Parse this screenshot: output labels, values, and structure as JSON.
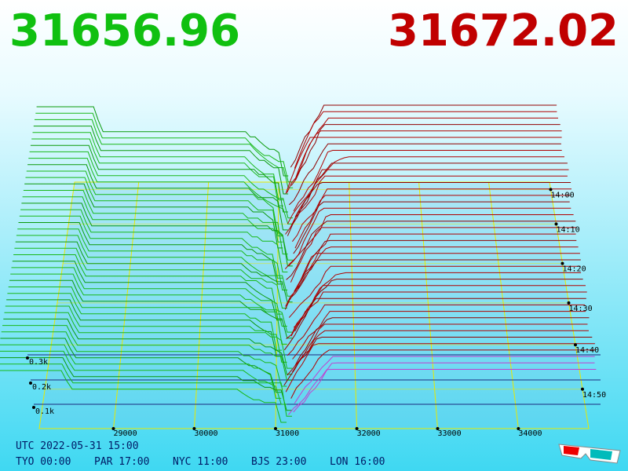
{
  "header": {
    "bid_price": "31656.96",
    "ask_price": "31672.02"
  },
  "axis": {
    "price_labels": [
      "29000",
      "30000",
      "31000",
      "32000",
      "33000",
      "34000"
    ],
    "depth_labels": [
      "0.3k",
      "0.2k",
      "0.1k"
    ],
    "time_labels": [
      "14:00",
      "14:10",
      "14:20",
      "14:30",
      "14:40",
      "14:50"
    ]
  },
  "footer": {
    "utc": "UTC 2022-05-31 15:00",
    "zones": [
      "TYO 00:00",
      "PAR 17:00",
      "NYC 11:00",
      "BJS 23:00",
      "LON 16:00"
    ]
  }
}
